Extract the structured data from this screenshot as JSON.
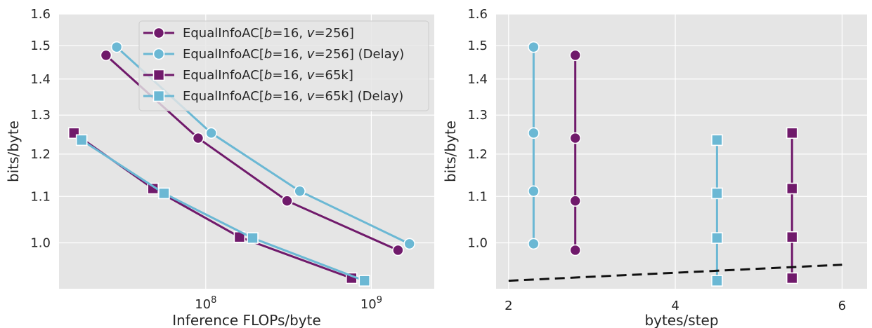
{
  "colors": {
    "purple": "#701a6b",
    "blue": "#6bb8d4",
    "reference": "#111111",
    "panel_background": "#e5e5e5",
    "grid": "#ffffff"
  },
  "chart_data": [
    {
      "type": "line",
      "xlabel": "Inference FLOPs/byte",
      "ylabel": "bits/byte",
      "xscale": "log",
      "yscale": "log",
      "xlim": [
        13000000,
        2400000000
      ],
      "ylim": [
        0.91,
        1.6
      ],
      "xticks": [
        {
          "value": 100000000,
          "base": "10",
          "exp": "8"
        },
        {
          "value": 1000000000,
          "base": "10",
          "exp": "9"
        }
      ],
      "yticks": [
        1.0,
        1.1,
        1.2,
        1.3,
        1.4,
        1.5,
        1.6
      ],
      "ytick_labels": [
        "1.0",
        "1.1",
        "1.2",
        "1.3",
        "1.4",
        "1.5",
        "1.6"
      ],
      "grid": true,
      "legend_position": "top-right",
      "series": [
        {
          "legend": {
            "pre": "EqualInfoAC[",
            "b": "b",
            "mid": "=16, ",
            "v": "v",
            "post": "=256]"
          },
          "color": "purple",
          "marker": "circle",
          "x": [
            25000000,
            90000000,
            310000000,
            1450000000
          ],
          "y": [
            1.47,
            1.24,
            1.09,
            0.985
          ]
        },
        {
          "legend": {
            "pre": "EqualInfoAC[",
            "b": "b",
            "mid": "=16, ",
            "v": "v",
            "post": "=256] (Delay)"
          },
          "color": "blue",
          "marker": "circle",
          "x": [
            29000000,
            108000000,
            370000000,
            1700000000
          ],
          "y": [
            1.495,
            1.253,
            1.112,
            0.998
          ]
        },
        {
          "legend": {
            "pre": "EqualInfoAC[",
            "b": "b",
            "mid": "=16, ",
            "v": "v",
            "post": "=65k]"
          },
          "color": "purple",
          "marker": "square",
          "x": [
            16000000,
            48000000,
            160000000,
            760000000
          ],
          "y": [
            1.253,
            1.118,
            1.012,
            0.93
          ]
        },
        {
          "legend": {
            "pre": "EqualInfoAC[",
            "b": "b",
            "mid": "=16, ",
            "v": "v",
            "post": "=65k] (Delay)"
          },
          "color": "blue",
          "marker": "square",
          "x": [
            17800000,
            56000000,
            192000000,
            910000000
          ],
          "y": [
            1.235,
            1.107,
            1.01,
            0.925
          ]
        }
      ]
    },
    {
      "type": "line",
      "xlabel": "bytes/step",
      "ylabel": "bits/byte",
      "xscale": "linear",
      "yscale": "log",
      "xlim": [
        1.85,
        6.3
      ],
      "ylim": [
        0.91,
        1.6
      ],
      "xticks": [
        2,
        4,
        6
      ],
      "xtick_labels": [
        "2",
        "4",
        "6"
      ],
      "yticks": [
        1.0,
        1.1,
        1.2,
        1.3,
        1.4,
        1.5,
        1.6
      ],
      "ytick_labels": [
        "1.0",
        "1.1",
        "1.2",
        "1.3",
        "1.4",
        "1.5",
        "1.6"
      ],
      "grid": true,
      "series": [
        {
          "color": "blue",
          "marker": "circle",
          "x": [
            2.3,
            2.3,
            2.3,
            2.3
          ],
          "y": [
            1.495,
            1.253,
            1.112,
            0.998
          ]
        },
        {
          "color": "purple",
          "marker": "circle",
          "x": [
            2.8,
            2.8,
            2.8,
            2.8
          ],
          "y": [
            1.47,
            1.24,
            1.09,
            0.985
          ]
        },
        {
          "color": "blue",
          "marker": "square",
          "x": [
            4.5,
            4.5,
            4.5,
            4.5
          ],
          "y": [
            1.235,
            1.107,
            1.01,
            0.925
          ]
        },
        {
          "color": "purple",
          "marker": "square",
          "x": [
            5.4,
            5.4,
            5.4,
            5.4
          ],
          "y": [
            1.253,
            1.118,
            1.012,
            0.93
          ]
        },
        {
          "color": "reference",
          "style": "dashed",
          "marker": "none",
          "x": [
            2.0,
            6.0
          ],
          "y": [
            0.925,
            0.956
          ]
        }
      ]
    }
  ]
}
